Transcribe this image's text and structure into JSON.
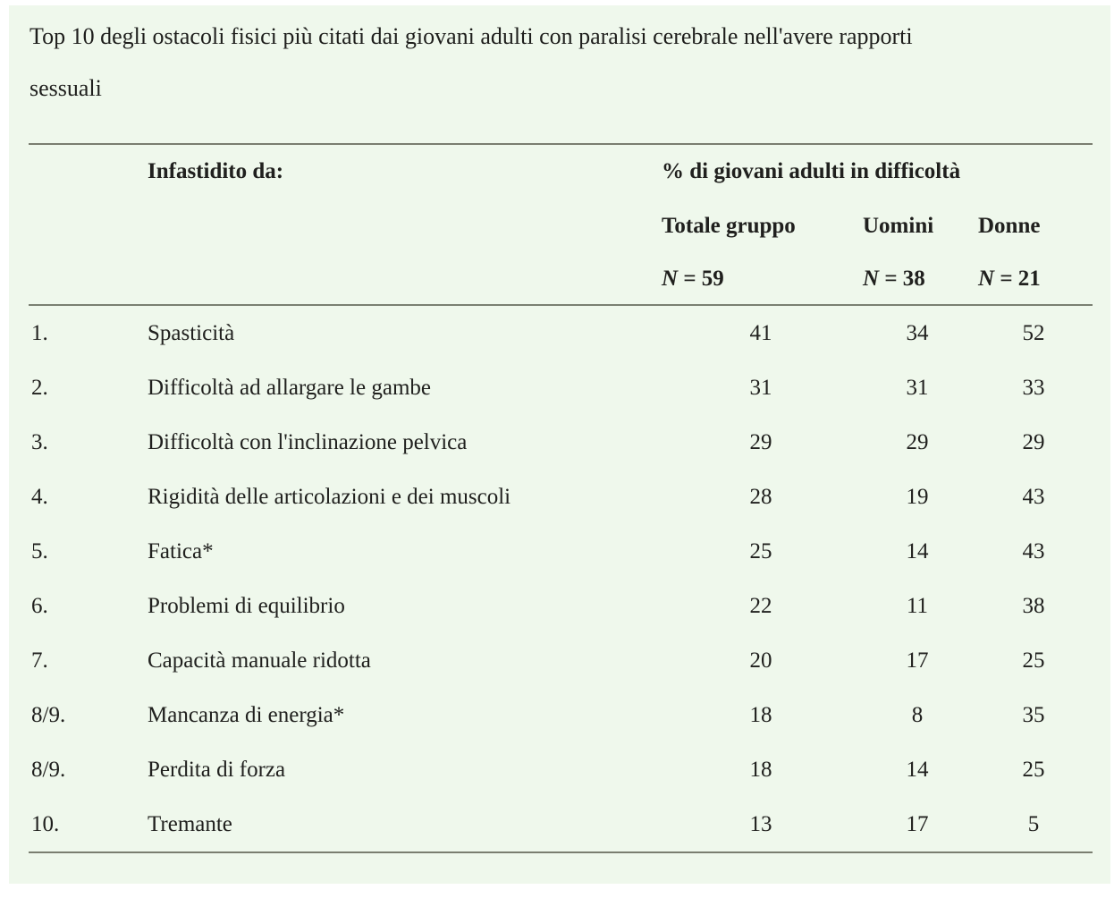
{
  "colors": {
    "panel_background": "#eff8ec",
    "text": "#20201e",
    "rule": "#7a7e70"
  },
  "title": {
    "line1": "Top 10 degli ostacoli fisici più citati dai giovani adulti con paralisi cerebrale nell'avere rapporti",
    "line2": "sessuali"
  },
  "table": {
    "stub_header": "Infastidito da:",
    "group_header": "% di giovani adulti in difficoltà",
    "columns": [
      "Totale gruppo",
      "Uomini",
      "Donne"
    ],
    "n_symbol": "N",
    "n_values": [
      " = 59",
      " = 38",
      " = 21"
    ],
    "rows": [
      {
        "rank": "1.",
        "label": "Spasticità",
        "total": "41",
        "men": "34",
        "women": "52"
      },
      {
        "rank": "2.",
        "label": "Difficoltà ad allargare le gambe",
        "total": "31",
        "men": "31",
        "women": "33"
      },
      {
        "rank": "3.",
        "label": "Difficoltà con l'inclinazione pelvica",
        "total": "29",
        "men": "29",
        "women": "29"
      },
      {
        "rank": "4.",
        "label": "Rigidità delle articolazioni e dei muscoli",
        "total": "28",
        "men": "19",
        "women": "43"
      },
      {
        "rank": "5.",
        "label": "Fatica*",
        "total": "25",
        "men": "14",
        "women": "43"
      },
      {
        "rank": "6.",
        "label": "Problemi di equilibrio",
        "total": "22",
        "men": "11",
        "women": "38"
      },
      {
        "rank": "7.",
        "label": "Capacità manuale ridotta",
        "total": "20",
        "men": "17",
        "women": "25"
      },
      {
        "rank": "8/9.",
        "label": "Mancanza di energia*",
        "total": "18",
        "men": "8",
        "women": "35"
      },
      {
        "rank": "8/9.",
        "label": "Perdita di forza",
        "total": "18",
        "men": "14",
        "women": "25"
      },
      {
        "rank": "10.",
        "label": "Tremante",
        "total": "13",
        "men": "17",
        "women": "5"
      }
    ]
  }
}
